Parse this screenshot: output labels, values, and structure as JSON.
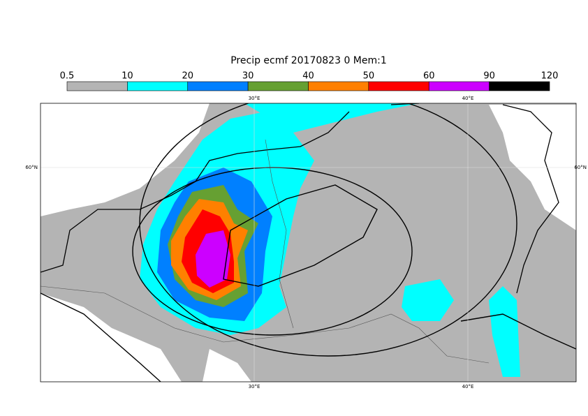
{
  "title": "Precip ecmf 20170823 0 Mem:1",
  "colorbar": {
    "levels": [
      0.5,
      10,
      20,
      30,
      40,
      50,
      60,
      90,
      120
    ],
    "colors": [
      "#b4b4b4",
      "#00ffff",
      "#0080ff",
      "#66a032",
      "#ff8000",
      "#ff0000",
      "#cc00ff",
      "#000000"
    ]
  },
  "map": {
    "lon_labels": [
      "30°E",
      "40°E"
    ],
    "lat_labels": [
      "60°N"
    ]
  }
}
